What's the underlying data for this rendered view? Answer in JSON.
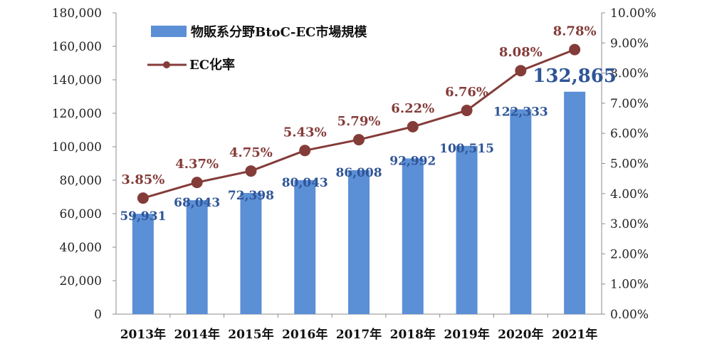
{
  "chart_data": {
    "type": "bar+line",
    "categories": [
      "2013年",
      "2014年",
      "2015年",
      "2016年",
      "2017年",
      "2018年",
      "2019年",
      "2020年",
      "2021年"
    ],
    "series": [
      {
        "name": "物販系分野BtoC-EC市場規模",
        "type": "bar",
        "axis": "left",
        "values": [
          59931,
          68043,
          72398,
          80043,
          86008,
          92992,
          100515,
          122333,
          132865
        ],
        "labels": [
          "59,931",
          "68,043",
          "72,398",
          "80,043",
          "86,008",
          "92,992",
          "100,515",
          "122,333",
          "132,865"
        ],
        "color": "#5b8fd6",
        "label_color": "#2f5597"
      },
      {
        "name": "EC化率",
        "type": "line",
        "axis": "right",
        "values": [
          3.85,
          4.37,
          4.75,
          5.43,
          5.79,
          6.22,
          6.76,
          8.08,
          8.78
        ],
        "labels": [
          "3.85%",
          "4.37%",
          "4.75%",
          "5.43%",
          "5.79%",
          "6.22%",
          "6.76%",
          "8.08%",
          "8.78%"
        ],
        "color": "#843c39"
      }
    ],
    "left_axis": {
      "ylim": [
        0,
        180000
      ],
      "ticks": [
        "0",
        "20,000",
        "40,000",
        "60,000",
        "80,000",
        "100,000",
        "120,000",
        "140,000",
        "160,000",
        "180,000"
      ]
    },
    "right_axis": {
      "ylim": [
        0,
        10
      ],
      "ticks": [
        "0.00%",
        "1.00%",
        "2.00%",
        "3.00%",
        "4.00%",
        "5.00%",
        "6.00%",
        "7.00%",
        "8.00%",
        "9.00%",
        "10.00%"
      ]
    },
    "grid": false,
    "legend_position": "top-left"
  }
}
